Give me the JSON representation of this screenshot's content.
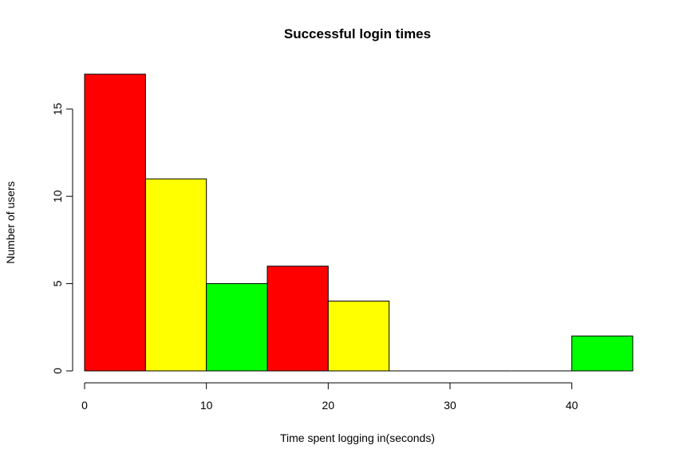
{
  "chart_data": {
    "type": "bar",
    "subtype": "histogram",
    "title": "Successful login times",
    "xlabel": "Time spent logging in(seconds)",
    "ylabel": "Number of users",
    "xlim": [
      0,
      45
    ],
    "ylim": [
      0,
      17
    ],
    "x_ticks": [
      0,
      10,
      20,
      30,
      40
    ],
    "y_ticks": [
      0,
      5,
      10,
      15
    ],
    "bins": [
      {
        "start": 0,
        "end": 5,
        "count": 17,
        "color": "#FF0000"
      },
      {
        "start": 5,
        "end": 10,
        "count": 11,
        "color": "#FFFF00"
      },
      {
        "start": 10,
        "end": 15,
        "count": 5,
        "color": "#00FF00"
      },
      {
        "start": 15,
        "end": 20,
        "count": 6,
        "color": "#FF0000"
      },
      {
        "start": 20,
        "end": 25,
        "count": 4,
        "color": "#FFFF00"
      },
      {
        "start": 25,
        "end": 30,
        "count": 0,
        "color": "#00FF00"
      },
      {
        "start": 30,
        "end": 35,
        "count": 0,
        "color": "#FF0000"
      },
      {
        "start": 35,
        "end": 40,
        "count": 0,
        "color": "#FFFF00"
      },
      {
        "start": 40,
        "end": 45,
        "count": 2,
        "color": "#00FF00"
      }
    ],
    "grid": false,
    "legend": "none"
  }
}
